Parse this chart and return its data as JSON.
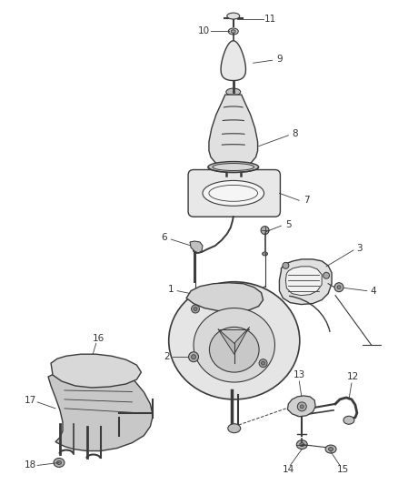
{
  "background_color": "#ffffff",
  "line_color": "#3a3a3a",
  "label_color": "#333333",
  "fig_width": 4.39,
  "fig_height": 5.33,
  "dpi": 100
}
